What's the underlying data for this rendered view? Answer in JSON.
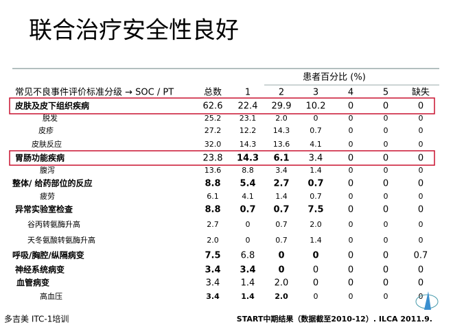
{
  "title": "联合治疗安全性良好",
  "table": {
    "group_header": "患者百分比 (%)",
    "columns": [
      "常见不良事件评价标准分级 → SOC / PT",
      "总数",
      "1",
      "2",
      "3",
      "4",
      "5",
      "缺失"
    ],
    "rows": [
      [
        "皮肤及皮下组织疾病",
        "62.6",
        "22.4",
        "29.9",
        "10.2",
        "0",
        "0",
        "0"
      ],
      [
        "脱发",
        "25.2",
        "23.1",
        "2.0",
        "0",
        "0",
        "0",
        "0"
      ],
      [
        "皮疹",
        "27.2",
        "12.2",
        "14.3",
        "0.7",
        "0",
        "0",
        "0"
      ],
      [
        "皮肤反应",
        "32.0",
        "14.3",
        "13.6",
        "4.1",
        "0",
        "0",
        "0"
      ],
      [
        "胃肠功能疾病",
        "23.8",
        "14.3",
        "6.1",
        "3.4",
        "0",
        "0",
        "0"
      ],
      [
        "腹泻",
        "13.6",
        "8.8",
        "3.4",
        "1.4",
        "0",
        "0",
        "0"
      ],
      [
        "整体/ 给药部位的反应",
        "8.8",
        "5.4",
        "2.7",
        "0.7",
        "0",
        "0",
        "0"
      ],
      [
        "疲劳",
        "6.1",
        "4.1",
        "1.4",
        "0.7",
        "0",
        "0",
        "0"
      ],
      [
        "异常实验室检查",
        "8.8",
        "0.7",
        "0.7",
        "7.5",
        "0",
        "0",
        "0"
      ],
      [
        "谷丙转氨酶升高",
        "2.7",
        "0",
        "0.7",
        "2.0",
        "0",
        "0",
        "0"
      ],
      [
        "天冬氨酸转氨酶升高",
        "2.0",
        "0",
        "0.7",
        "1.4",
        "0",
        "0",
        "0"
      ],
      [
        "呼吸/胸腔/纵隔病变",
        "7.5",
        "6.8",
        "0",
        "0",
        "0",
        "0",
        "0.7"
      ],
      [
        "神经系统病变",
        "3.4",
        "3.4",
        "0",
        "0",
        "0",
        "0",
        "0"
      ],
      [
        "血管病变",
        "3.4",
        "1.4",
        "2.0",
        "0",
        "0",
        "0",
        "0"
      ],
      [
        "高血压",
        "3.4",
        "1.4",
        "2.0",
        "0",
        "0",
        "0",
        "0"
      ]
    ]
  },
  "footer": {
    "left": "多吉美 ITC-1培训",
    "right": "START中期结果（数据截至2010-12）. ILCA 2011.9."
  }
}
